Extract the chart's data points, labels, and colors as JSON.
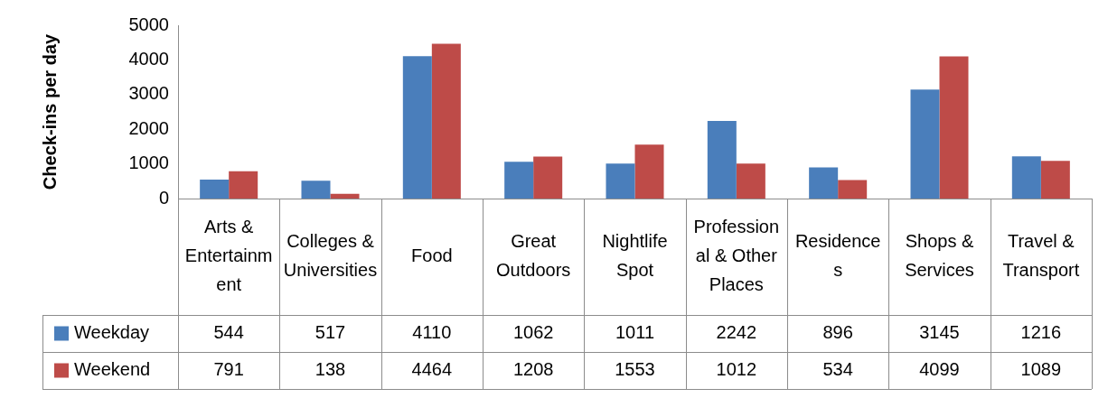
{
  "chart_data": {
    "type": "bar",
    "ylabel": "Check-ins per day",
    "categories": [
      "Arts & Entertainment",
      "Colleges & Universities",
      "Food",
      "Great Outdoors",
      "Nightlife Spot",
      "Professional & Other Places",
      "Residences",
      "Shops & Services",
      "Travel & Transport"
    ],
    "series": [
      {
        "name": "Weekday",
        "color": "#4a7ebb",
        "values": [
          544,
          517,
          4110,
          1062,
          1011,
          2242,
          896,
          3145,
          1216
        ]
      },
      {
        "name": "Weekend",
        "color": "#be4b48",
        "values": [
          791,
          138,
          4464,
          1208,
          1553,
          1012,
          534,
          4099,
          1089
        ]
      }
    ],
    "ylim": [
      0,
      5000
    ],
    "yticks": [
      0,
      1000,
      2000,
      3000,
      4000,
      5000
    ],
    "grid": false,
    "legend": "bottom",
    "data_labels": true
  }
}
